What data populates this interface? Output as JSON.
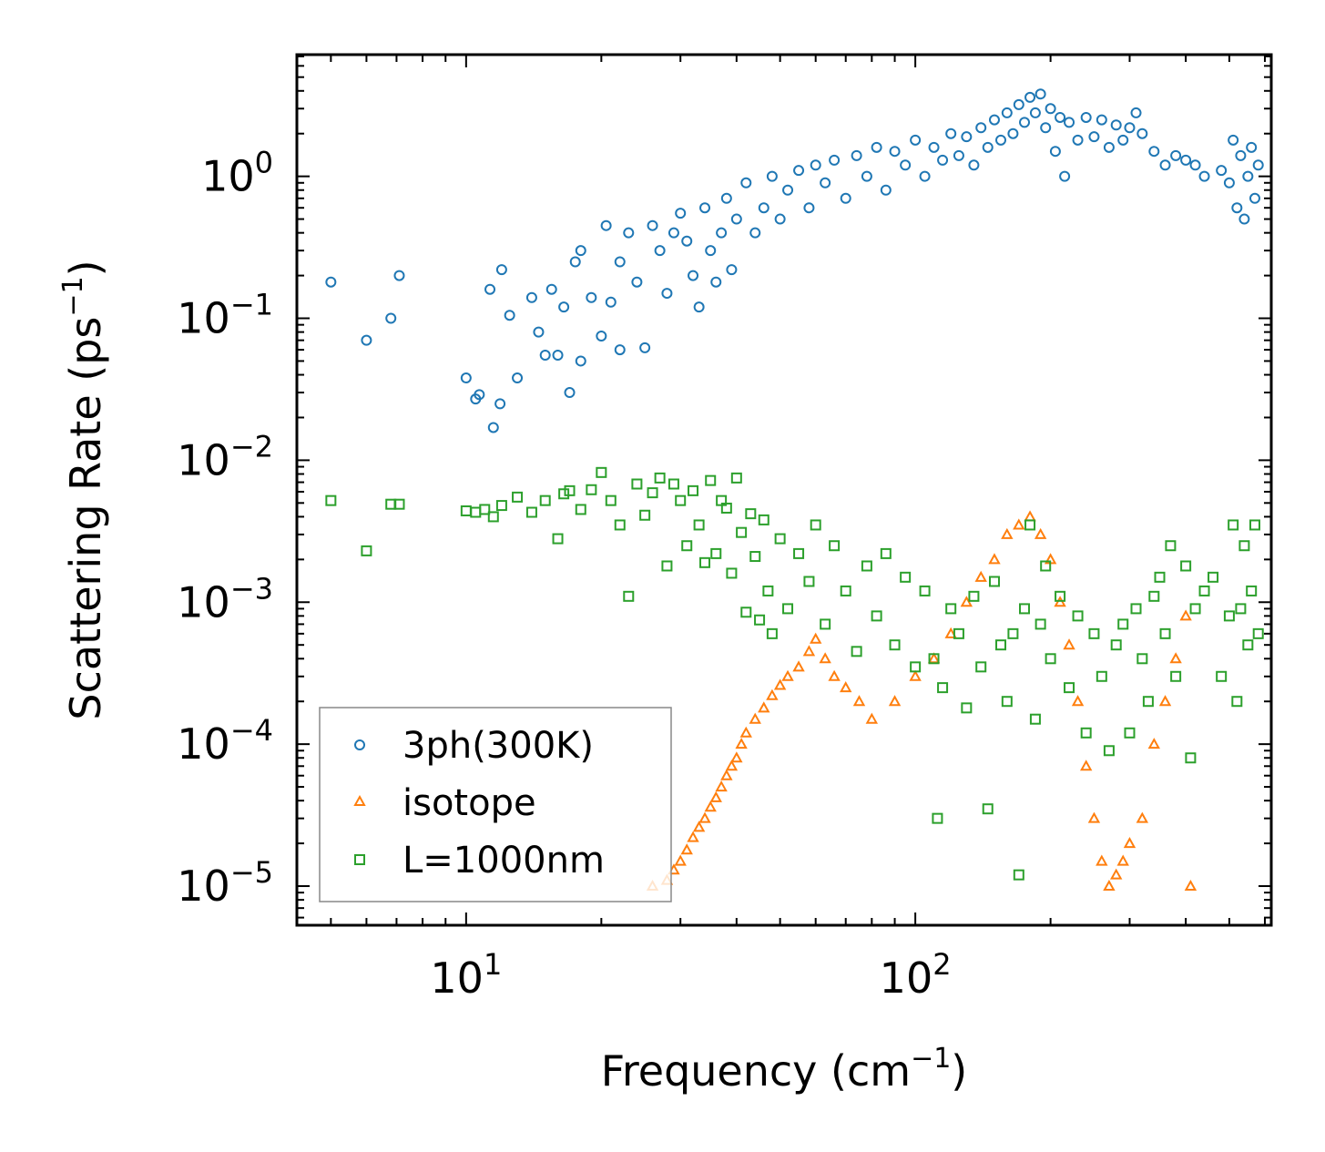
{
  "chart_data": {
    "type": "scatter",
    "title": "",
    "xlabel": "Frequency (cm",
    "xlabel_sup": "−1",
    "xlabel_end": ")",
    "ylabel": "Scattering Rate (ps",
    "ylabel_sup": "−1",
    "ylabel_end": ")",
    "xscale": "log",
    "yscale": "log",
    "xlim": [
      4.2,
      620
    ],
    "ylim": [
      5.3e-06,
      7.2
    ],
    "x_ticks": [
      {
        "value": 10,
        "base": "10",
        "exp": "1"
      },
      {
        "value": 100,
        "base": "10",
        "exp": "2"
      }
    ],
    "y_ticks": [
      {
        "value": 1,
        "base": "10",
        "exp": "0"
      },
      {
        "value": 0.1,
        "base": "10",
        "exp": "−1"
      },
      {
        "value": 0.01,
        "base": "10",
        "exp": "−2"
      },
      {
        "value": 0.001,
        "base": "10",
        "exp": "−3"
      },
      {
        "value": 0.0001,
        "base": "10",
        "exp": "−4"
      },
      {
        "value": 1e-05,
        "base": "10",
        "exp": "−5"
      }
    ],
    "legend_position": "bottom-left",
    "series": [
      {
        "name": "3ph(300K)",
        "marker": "circle",
        "color": "#1f77b4",
        "points": [
          [
            5,
            0.18
          ],
          [
            6,
            0.07
          ],
          [
            6.8,
            0.1
          ],
          [
            7.1,
            0.2
          ],
          [
            10,
            0.038
          ],
          [
            10.5,
            0.027
          ],
          [
            10.7,
            0.029
          ],
          [
            11.3,
            0.16
          ],
          [
            11.5,
            0.017
          ],
          [
            11.9,
            0.025
          ],
          [
            12,
            0.22
          ],
          [
            12.5,
            0.105
          ],
          [
            13,
            0.038
          ],
          [
            14,
            0.14
          ],
          [
            14.5,
            0.08
          ],
          [
            15,
            0.055
          ],
          [
            15.5,
            0.16
          ],
          [
            16,
            0.055
          ],
          [
            16.5,
            0.12
          ],
          [
            17,
            0.03
          ],
          [
            17.5,
            0.25
          ],
          [
            18,
            0.05
          ],
          [
            18,
            0.3
          ],
          [
            19,
            0.14
          ],
          [
            20,
            0.075
          ],
          [
            20.5,
            0.45
          ],
          [
            21,
            0.13
          ],
          [
            22,
            0.25
          ],
          [
            22,
            0.06
          ],
          [
            23,
            0.4
          ],
          [
            24,
            0.18
          ],
          [
            25,
            0.062
          ],
          [
            26,
            0.45
          ],
          [
            27,
            0.3
          ],
          [
            28,
            0.15
          ],
          [
            29,
            0.4
          ],
          [
            30,
            0.55
          ],
          [
            31,
            0.35
          ],
          [
            32,
            0.2
          ],
          [
            33,
            0.12
          ],
          [
            34,
            0.6
          ],
          [
            35,
            0.3
          ],
          [
            36,
            0.18
          ],
          [
            37,
            0.4
          ],
          [
            38,
            0.7
          ],
          [
            39,
            0.22
          ],
          [
            40,
            0.5
          ],
          [
            42,
            0.9
          ],
          [
            44,
            0.4
          ],
          [
            46,
            0.6
          ],
          [
            48,
            1.0
          ],
          [
            50,
            0.5
          ],
          [
            52,
            0.8
          ],
          [
            55,
            1.1
          ],
          [
            58,
            0.6
          ],
          [
            60,
            1.2
          ],
          [
            63,
            0.9
          ],
          [
            66,
            1.3
          ],
          [
            70,
            0.7
          ],
          [
            74,
            1.4
          ],
          [
            78,
            1.0
          ],
          [
            82,
            1.6
          ],
          [
            86,
            0.8
          ],
          [
            90,
            1.5
          ],
          [
            95,
            1.2
          ],
          [
            100,
            1.8
          ],
          [
            105,
            1.0
          ],
          [
            110,
            1.6
          ],
          [
            115,
            1.3
          ],
          [
            120,
            2.0
          ],
          [
            125,
            1.4
          ],
          [
            130,
            1.9
          ],
          [
            135,
            1.2
          ],
          [
            140,
            2.2
          ],
          [
            145,
            1.6
          ],
          [
            150,
            2.5
          ],
          [
            155,
            1.8
          ],
          [
            160,
            2.8
          ],
          [
            165,
            2.0
          ],
          [
            170,
            3.2
          ],
          [
            175,
            2.4
          ],
          [
            180,
            3.6
          ],
          [
            185,
            2.8
          ],
          [
            190,
            3.8
          ],
          [
            195,
            2.2
          ],
          [
            200,
            3.0
          ],
          [
            205,
            1.5
          ],
          [
            210,
            2.6
          ],
          [
            215,
            1.0
          ],
          [
            220,
            2.4
          ],
          [
            230,
            1.8
          ],
          [
            240,
            2.6
          ],
          [
            250,
            1.9
          ],
          [
            260,
            2.5
          ],
          [
            270,
            1.6
          ],
          [
            280,
            2.3
          ],
          [
            290,
            1.8
          ],
          [
            300,
            2.2
          ],
          [
            310,
            2.8
          ],
          [
            320,
            2.0
          ],
          [
            340,
            1.5
          ],
          [
            360,
            1.2
          ],
          [
            380,
            1.4
          ],
          [
            400,
            1.3
          ],
          [
            420,
            1.2
          ],
          [
            440,
            1.0
          ],
          [
            480,
            1.1
          ],
          [
            500,
            0.9
          ],
          [
            510,
            1.8
          ],
          [
            520,
            0.6
          ],
          [
            530,
            1.4
          ],
          [
            540,
            0.5
          ],
          [
            550,
            1.0
          ],
          [
            560,
            1.6
          ],
          [
            570,
            0.7
          ],
          [
            580,
            1.2
          ]
        ]
      },
      {
        "name": "isotope",
        "marker": "triangle",
        "color": "#ff7f0e",
        "points": [
          [
            26,
            1e-05
          ],
          [
            28,
            1.1e-05
          ],
          [
            29,
            1.3e-05
          ],
          [
            30,
            1.5e-05
          ],
          [
            31,
            1.8e-05
          ],
          [
            32,
            2.2e-05
          ],
          [
            33,
            2.6e-05
          ],
          [
            34,
            3e-05
          ],
          [
            35,
            3.6e-05
          ],
          [
            36,
            4.2e-05
          ],
          [
            37,
            5e-05
          ],
          [
            38,
            6e-05
          ],
          [
            39,
            7e-05
          ],
          [
            40,
            8e-05
          ],
          [
            41,
            0.0001
          ],
          [
            42,
            0.00012
          ],
          [
            44,
            0.00015
          ],
          [
            46,
            0.00018
          ],
          [
            48,
            0.00022
          ],
          [
            50,
            0.00026
          ],
          [
            52,
            0.0003
          ],
          [
            55,
            0.00035
          ],
          [
            58,
            0.00045
          ],
          [
            60,
            0.00055
          ],
          [
            63,
            0.0004
          ],
          [
            66,
            0.0003
          ],
          [
            70,
            0.00025
          ],
          [
            75,
            0.0002
          ],
          [
            80,
            0.00015
          ],
          [
            90,
            0.0002
          ],
          [
            100,
            0.0003
          ],
          [
            110,
            0.0004
          ],
          [
            120,
            0.0006
          ],
          [
            130,
            0.001
          ],
          [
            140,
            0.0015
          ],
          [
            150,
            0.002
          ],
          [
            160,
            0.003
          ],
          [
            170,
            0.0035
          ],
          [
            180,
            0.004
          ],
          [
            190,
            0.003
          ],
          [
            200,
            0.002
          ],
          [
            210,
            0.001
          ],
          [
            220,
            0.0005
          ],
          [
            230,
            0.0002
          ],
          [
            240,
            7e-05
          ],
          [
            250,
            3e-05
          ],
          [
            260,
            1.5e-05
          ],
          [
            270,
            1e-05
          ],
          [
            280,
            1.2e-05
          ],
          [
            290,
            1.5e-05
          ],
          [
            300,
            2e-05
          ],
          [
            320,
            3e-05
          ],
          [
            340,
            0.0001
          ],
          [
            360,
            0.0002
          ],
          [
            380,
            0.0004
          ],
          [
            400,
            0.0008
          ],
          [
            410,
            1e-05
          ]
        ]
      },
      {
        "name": "L=1000nm",
        "marker": "square",
        "color": "#2ca02c",
        "points": [
          [
            5,
            0.0052
          ],
          [
            6,
            0.0023
          ],
          [
            6.8,
            0.0049
          ],
          [
            7.1,
            0.0049
          ],
          [
            10,
            0.0044
          ],
          [
            10.5,
            0.0043
          ],
          [
            11,
            0.0045
          ],
          [
            11.5,
            0.004
          ],
          [
            12,
            0.0048
          ],
          [
            13,
            0.0055
          ],
          [
            14,
            0.0043
          ],
          [
            15,
            0.0052
          ],
          [
            16,
            0.0028
          ],
          [
            16.5,
            0.0058
          ],
          [
            17,
            0.0061
          ],
          [
            18,
            0.0045
          ],
          [
            19,
            0.0062
          ],
          [
            20,
            0.0082
          ],
          [
            21,
            0.0052
          ],
          [
            22,
            0.0035
          ],
          [
            23,
            0.0011
          ],
          [
            24,
            0.0068
          ],
          [
            25,
            0.0041
          ],
          [
            26,
            0.0059
          ],
          [
            27,
            0.0075
          ],
          [
            28,
            0.0018
          ],
          [
            29,
            0.0068
          ],
          [
            30,
            0.0052
          ],
          [
            31,
            0.0025
          ],
          [
            32,
            0.0061
          ],
          [
            33,
            0.0035
          ],
          [
            34,
            0.0019
          ],
          [
            35,
            0.0072
          ],
          [
            36,
            0.0022
          ],
          [
            37,
            0.0052
          ],
          [
            38,
            0.0046
          ],
          [
            39,
            0.0016
          ],
          [
            40,
            0.0075
          ],
          [
            41,
            0.0031
          ],
          [
            42,
            0.00085
          ],
          [
            43,
            0.0042
          ],
          [
            44,
            0.0021
          ],
          [
            45,
            0.00075
          ],
          [
            46,
            0.0038
          ],
          [
            47,
            0.0012
          ],
          [
            48,
            0.0006
          ],
          [
            50,
            0.0028
          ],
          [
            52,
            0.0009
          ],
          [
            55,
            0.0022
          ],
          [
            58,
            0.0014
          ],
          [
            60,
            0.0035
          ],
          [
            63,
            0.0007
          ],
          [
            66,
            0.0025
          ],
          [
            70,
            0.0012
          ],
          [
            74,
            0.00045
          ],
          [
            78,
            0.0018
          ],
          [
            82,
            0.0008
          ],
          [
            86,
            0.0022
          ],
          [
            90,
            0.0005
          ],
          [
            95,
            0.0015
          ],
          [
            100,
            0.00035
          ],
          [
            105,
            0.0012
          ],
          [
            110,
            0.0004
          ],
          [
            112,
            3e-05
          ],
          [
            115,
            0.00025
          ],
          [
            120,
            0.0009
          ],
          [
            125,
            0.0006
          ],
          [
            130,
            0.00018
          ],
          [
            135,
            0.0011
          ],
          [
            140,
            0.00035
          ],
          [
            145,
            3.5e-05
          ],
          [
            150,
            0.0014
          ],
          [
            155,
            0.0005
          ],
          [
            160,
            0.0002
          ],
          [
            165,
            0.0006
          ],
          [
            170,
            1.2e-05
          ],
          [
            175,
            0.0009
          ],
          [
            180,
            0.0035
          ],
          [
            185,
            0.00015
          ],
          [
            190,
            0.0007
          ],
          [
            195,
            0.0018
          ],
          [
            200,
            0.0004
          ],
          [
            210,
            0.0011
          ],
          [
            220,
            0.00025
          ],
          [
            230,
            0.0008
          ],
          [
            240,
            0.00012
          ],
          [
            250,
            0.0006
          ],
          [
            260,
            0.0003
          ],
          [
            270,
            9e-05
          ],
          [
            280,
            0.0005
          ],
          [
            290,
            0.0007
          ],
          [
            300,
            0.00012
          ],
          [
            310,
            0.0009
          ],
          [
            320,
            0.0004
          ],
          [
            330,
            0.0002
          ],
          [
            340,
            0.0011
          ],
          [
            350,
            0.0015
          ],
          [
            360,
            0.0006
          ],
          [
            370,
            0.0025
          ],
          [
            380,
            0.0003
          ],
          [
            400,
            0.0018
          ],
          [
            410,
            8e-05
          ],
          [
            420,
            0.0009
          ],
          [
            440,
            0.0012
          ],
          [
            460,
            0.0015
          ],
          [
            480,
            0.0003
          ],
          [
            500,
            0.0008
          ],
          [
            510,
            0.0035
          ],
          [
            520,
            0.0002
          ],
          [
            530,
            0.0009
          ],
          [
            540,
            0.0025
          ],
          [
            550,
            0.0005
          ],
          [
            560,
            0.0012
          ],
          [
            570,
            0.0035
          ],
          [
            580,
            0.0006
          ]
        ]
      }
    ]
  }
}
